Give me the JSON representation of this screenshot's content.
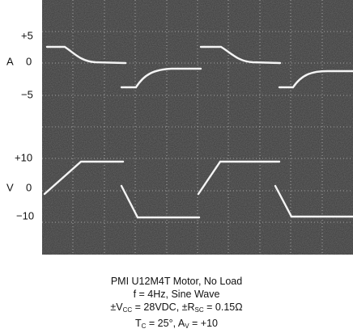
{
  "scope": {
    "current": {
      "label": "A",
      "ticks": [
        "+5",
        "0",
        "−5"
      ]
    },
    "voltage": {
      "label": "V",
      "ticks": [
        "+10",
        "0",
        "−10"
      ]
    }
  },
  "caption": [
    "PMI U12M4T Motor, No Load",
    "f = 4Hz, Sine Wave",
    [
      "±V",
      "CC",
      " = 28VDC, ±R",
      "SC",
      " = 0.15Ω"
    ],
    [
      "T",
      "C",
      " = 25°, A",
      "V",
      " = +10"
    ]
  ]
}
